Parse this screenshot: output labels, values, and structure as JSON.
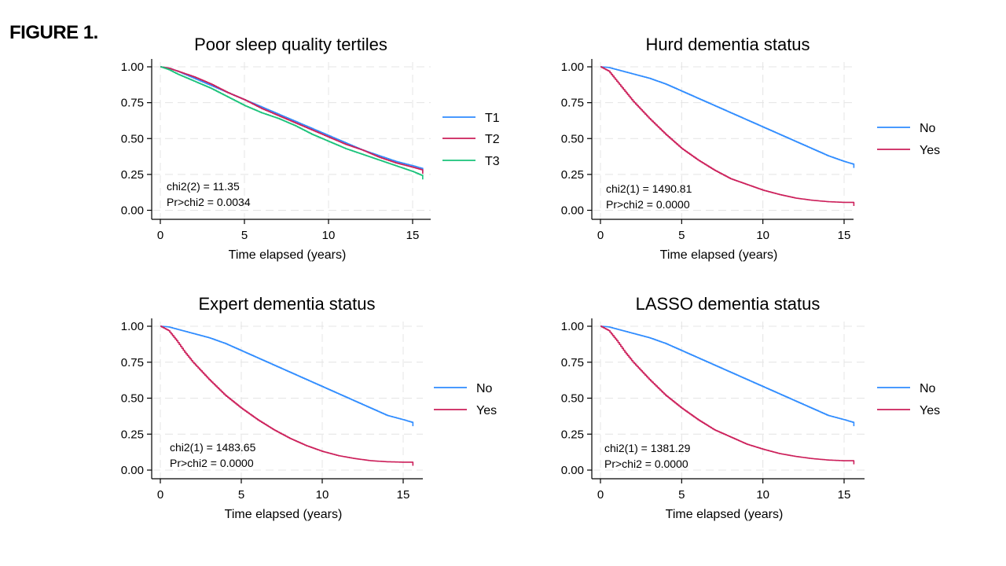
{
  "figure_label": "FIGURE 1.",
  "colors": {
    "blue": "#2f8cff",
    "crimson": "#cc1f5a",
    "green": "#19c27a",
    "axis": "#000000",
    "grid": "#e4e4e4"
  },
  "chart_data": [
    {
      "type": "line",
      "title": "Poor sleep quality tertiles",
      "xlabel": "Time elapsed (years)",
      "ylabel": "",
      "xlim": [
        0,
        15.7
      ],
      "ylim": [
        0,
        1
      ],
      "xticks": [
        "0",
        "5",
        "10",
        "15"
      ],
      "yticks": [
        "0.00",
        "0.25",
        "0.50",
        "0.75",
        "1.00"
      ],
      "grid": true,
      "legend_position": "right",
      "annotation": [
        "chi2(2) =  11.35",
        "Pr>chi2 = 0.0034"
      ],
      "series": [
        {
          "name": "T1",
          "color": "#2f8cff",
          "x": [
            0,
            0.5,
            1,
            2,
            3,
            4,
            5,
            6,
            7,
            8,
            9,
            10,
            11,
            12,
            13,
            14,
            15,
            15.6
          ],
          "y": [
            1.0,
            0.99,
            0.97,
            0.92,
            0.87,
            0.82,
            0.77,
            0.72,
            0.67,
            0.62,
            0.57,
            0.52,
            0.47,
            0.42,
            0.38,
            0.34,
            0.31,
            0.29
          ]
        },
        {
          "name": "T2",
          "color": "#cc1f5a",
          "x": [
            0,
            0.5,
            1,
            2,
            3,
            4,
            5,
            6,
            7,
            8,
            9,
            10,
            11,
            12,
            13,
            14,
            15,
            15.6
          ],
          "y": [
            1.0,
            0.99,
            0.97,
            0.93,
            0.88,
            0.82,
            0.77,
            0.71,
            0.66,
            0.61,
            0.56,
            0.51,
            0.46,
            0.42,
            0.37,
            0.33,
            0.3,
            0.28
          ]
        },
        {
          "name": "T3",
          "color": "#19c27a",
          "x": [
            0,
            0.5,
            1,
            2,
            3,
            4,
            5,
            6,
            7,
            8,
            9,
            10,
            11,
            12,
            13,
            14,
            15,
            15.6
          ],
          "y": [
            1.0,
            0.98,
            0.95,
            0.9,
            0.85,
            0.79,
            0.73,
            0.68,
            0.64,
            0.59,
            0.53,
            0.48,
            0.43,
            0.39,
            0.35,
            0.31,
            0.27,
            0.24
          ]
        }
      ]
    },
    {
      "type": "line",
      "title": "Hurd dementia status",
      "xlabel": "Time elapsed (years)",
      "ylabel": "",
      "xlim": [
        0,
        15.7
      ],
      "ylim": [
        0,
        1
      ],
      "xticks": [
        "0",
        "5",
        "10",
        "15"
      ],
      "yticks": [
        "0.00",
        "0.25",
        "0.50",
        "0.75",
        "1.00"
      ],
      "grid": true,
      "legend_position": "right",
      "annotation": [
        "chi2(1) = 1490.81",
        "Pr>chi2 =  0.0000"
      ],
      "series": [
        {
          "name": "No",
          "color": "#2f8cff",
          "x": [
            0,
            0.5,
            1,
            2,
            3,
            4,
            5,
            6,
            7,
            8,
            9,
            10,
            11,
            12,
            13,
            14,
            15,
            15.6
          ],
          "y": [
            1.0,
            0.995,
            0.98,
            0.95,
            0.92,
            0.88,
            0.83,
            0.78,
            0.73,
            0.68,
            0.63,
            0.58,
            0.53,
            0.48,
            0.43,
            0.38,
            0.34,
            0.32
          ]
        },
        {
          "name": "Yes",
          "color": "#cc1f5a",
          "x": [
            0,
            0.5,
            1,
            1.5,
            2,
            3,
            4,
            5,
            6,
            7,
            8,
            9,
            10,
            11,
            12,
            13,
            14,
            15,
            15.6
          ],
          "y": [
            1.0,
            0.97,
            0.9,
            0.83,
            0.76,
            0.64,
            0.53,
            0.43,
            0.35,
            0.28,
            0.22,
            0.18,
            0.14,
            0.11,
            0.085,
            0.07,
            0.06,
            0.055,
            0.055
          ]
        }
      ]
    },
    {
      "type": "line",
      "title": "Expert dementia status",
      "xlabel": "Time elapsed (years)",
      "ylabel": "",
      "xlim": [
        0,
        15.7
      ],
      "ylim": [
        0,
        1
      ],
      "xticks": [
        "0",
        "5",
        "10",
        "15"
      ],
      "yticks": [
        "0.00",
        "0.25",
        "0.50",
        "0.75",
        "1.00"
      ],
      "grid": true,
      "legend_position": "right",
      "annotation": [
        "chi2(1) = 1483.65",
        "Pr>chi2 =  0.0000"
      ],
      "series": [
        {
          "name": "No",
          "color": "#2f8cff",
          "x": [
            0,
            0.5,
            1,
            2,
            3,
            4,
            5,
            6,
            7,
            8,
            9,
            10,
            11,
            12,
            13,
            14,
            15,
            15.6
          ],
          "y": [
            1.0,
            0.995,
            0.98,
            0.95,
            0.92,
            0.88,
            0.83,
            0.78,
            0.73,
            0.68,
            0.63,
            0.58,
            0.53,
            0.48,
            0.43,
            0.38,
            0.35,
            0.33
          ]
        },
        {
          "name": "Yes",
          "color": "#cc1f5a",
          "x": [
            0,
            0.5,
            1,
            1.5,
            2,
            3,
            4,
            5,
            6,
            7,
            8,
            9,
            10,
            11,
            12,
            13,
            14,
            15,
            15.6
          ],
          "y": [
            1.0,
            0.97,
            0.9,
            0.82,
            0.75,
            0.63,
            0.52,
            0.43,
            0.35,
            0.28,
            0.22,
            0.17,
            0.13,
            0.1,
            0.08,
            0.065,
            0.058,
            0.055,
            0.055
          ]
        }
      ]
    },
    {
      "type": "line",
      "title": "LASSO dementia status",
      "xlabel": "Time elapsed (years)",
      "ylabel": "",
      "xlim": [
        0,
        15.7
      ],
      "ylim": [
        0,
        1
      ],
      "xticks": [
        "0",
        "5",
        "10",
        "15"
      ],
      "yticks": [
        "0.00",
        "0.25",
        "0.50",
        "0.75",
        "1.00"
      ],
      "grid": true,
      "legend_position": "right",
      "annotation": [
        "chi2(1) = 1381.29",
        "Pr>chi2 =  0.0000"
      ],
      "series": [
        {
          "name": "No",
          "color": "#2f8cff",
          "x": [
            0,
            0.5,
            1,
            2,
            3,
            4,
            5,
            6,
            7,
            8,
            9,
            10,
            11,
            12,
            13,
            14,
            15,
            15.6
          ],
          "y": [
            1.0,
            0.995,
            0.98,
            0.95,
            0.92,
            0.88,
            0.83,
            0.78,
            0.73,
            0.68,
            0.63,
            0.58,
            0.53,
            0.48,
            0.43,
            0.38,
            0.35,
            0.33
          ]
        },
        {
          "name": "Yes",
          "color": "#cc1f5a",
          "x": [
            0,
            0.5,
            1,
            1.5,
            2,
            3,
            4,
            5,
            6,
            7,
            8,
            9,
            10,
            11,
            12,
            13,
            14,
            15,
            15.6
          ],
          "y": [
            1.0,
            0.97,
            0.9,
            0.82,
            0.75,
            0.63,
            0.52,
            0.43,
            0.35,
            0.28,
            0.23,
            0.18,
            0.145,
            0.115,
            0.095,
            0.08,
            0.07,
            0.065,
            0.065
          ]
        }
      ]
    }
  ]
}
